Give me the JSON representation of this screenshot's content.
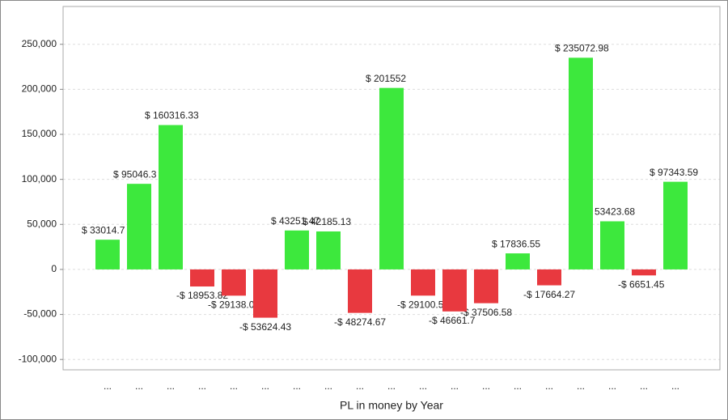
{
  "chart_data": {
    "type": "bar",
    "x_label": "PL in money by Year",
    "categories": [
      "...",
      "...",
      "...",
      "...",
      "...",
      "...",
      "...",
      "...",
      "...",
      "...",
      "...",
      "...",
      "...",
      "...",
      "...",
      "...",
      "...",
      "...",
      "..."
    ],
    "values": [
      33014.7,
      95046.3,
      160316.33,
      -18953.82,
      -29138.0,
      -53624.43,
      43251.47,
      42185.13,
      -48274.67,
      201552,
      -29100.5,
      -46661.7,
      -37506.58,
      17836.55,
      -17664.27,
      235072.98,
      53423.68,
      -6651.45,
      97343.59
    ],
    "value_labels": [
      "$ 33014.7",
      "$ 95046.3",
      "$ 160316.33",
      "-$ 18953.82",
      "-$ 29138.0",
      "-$ 53624.43",
      "$ 43251.47",
      "$ 42185.13",
      "-$ 48274.67",
      "$ 201552",
      "-$ 29100.5",
      "-$ 46661.7",
      "-$ 37506.58",
      "$ 17836.55",
      "-$ 17664.27",
      "$ 235072.98",
      "$ 53423.68",
      "-$ 6651.45",
      "$ 97343.59"
    ],
    "positive_color": "#3de83d",
    "negative_color": "#e8393f",
    "ylim": [
      -111500,
      292000
    ],
    "yticks": [
      {
        "value": -100000,
        "label": "-100,000"
      },
      {
        "value": -50000,
        "label": "-50,000"
      },
      0,
      {
        "value": 50000,
        "label": "50,000"
      },
      {
        "value": 100000,
        "label": "100,000"
      },
      {
        "value": 150000,
        "label": "150,000"
      },
      {
        "value": 200000,
        "label": "200,000"
      },
      {
        "value": 250000,
        "label": "250,000"
      }
    ],
    "grid": true
  }
}
